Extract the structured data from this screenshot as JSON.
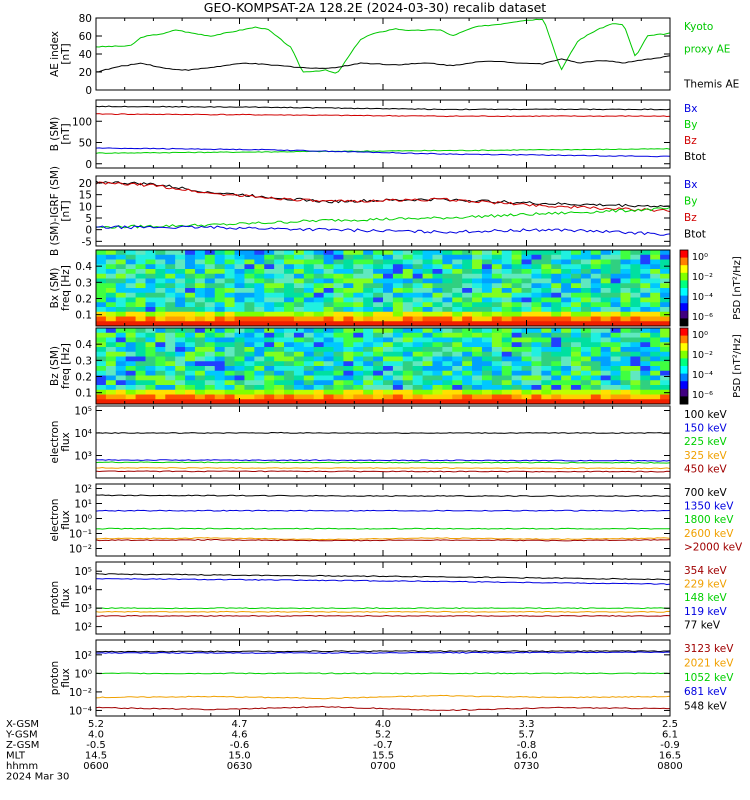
{
  "title": "GEO-KOMPSAT-2A 128.2E (2024-03-30) recalib dataset",
  "colors": {
    "black": "#000000",
    "blue": "#0000e0",
    "green": "#00d000",
    "red": "#d00000",
    "orange": "#f0a000",
    "darkred": "#a00000",
    "kyoto": "#00c800"
  },
  "chart_data": [
    {
      "id": "ae",
      "type": "line",
      "ylabel": [
        "AE index",
        "[nT]"
      ],
      "yticks": [
        "0",
        "20",
        "40",
        "60",
        "80"
      ],
      "ylim": [
        0,
        80
      ],
      "legend": [
        {
          "label": "Kyoto",
          "color": "#00c800"
        },
        {
          "label": "proxy AE",
          "color": "#00c800"
        },
        {
          "label": "Themis AE",
          "color": "#000000"
        }
      ],
      "series": [
        {
          "name": "Kyoto proxy AE",
          "color": "#00c800",
          "t": [
            0,
            6,
            8,
            12,
            14,
            16,
            20,
            28,
            30,
            34,
            36,
            40,
            42,
            46,
            48,
            52,
            55,
            60,
            62,
            64,
            66,
            70,
            74,
            78,
            81,
            84,
            87,
            90,
            92,
            94,
            96,
            100
          ],
          "values": [
            48,
            49,
            59,
            63,
            67,
            64,
            60,
            70,
            67,
            47,
            20,
            22,
            18,
            56,
            62,
            68,
            66,
            67,
            60,
            65,
            70,
            73,
            77,
            79,
            22,
            55,
            66,
            74,
            72,
            36,
            60,
            63
          ]
        },
        {
          "name": "Themis AE",
          "color": "#000000",
          "t": [
            0,
            4,
            8,
            12,
            16,
            20,
            26,
            30,
            34,
            38,
            42,
            46,
            52,
            58,
            62,
            66,
            70,
            74,
            78,
            81,
            84,
            88,
            92,
            96,
            100
          ],
          "values": [
            20,
            26,
            30,
            24,
            22,
            25,
            30,
            28,
            26,
            24,
            25,
            30,
            28,
            30,
            27,
            31,
            32,
            30,
            29,
            35,
            30,
            33,
            30,
            34,
            38
          ]
        }
      ]
    },
    {
      "id": "bsm",
      "type": "line",
      "ylabel": [
        "B (SM)",
        "[nT]"
      ],
      "yticks": [
        "0",
        "50",
        "100"
      ],
      "ylim": [
        -10,
        150
      ],
      "legend": [
        {
          "label": "Bx",
          "color": "#0000e0"
        },
        {
          "label": "By",
          "color": "#00d000"
        },
        {
          "label": "Bz",
          "color": "#d00000"
        },
        {
          "label": "Btot",
          "color": "#000000"
        }
      ],
      "series": [
        {
          "name": "Btot",
          "color": "#000000",
          "t": [
            0,
            30,
            60,
            100
          ],
          "values": [
            135,
            133,
            128,
            128
          ]
        },
        {
          "name": "Bz",
          "color": "#d00000",
          "t": [
            0,
            30,
            60,
            100
          ],
          "values": [
            117,
            115,
            112,
            112
          ]
        },
        {
          "name": "By",
          "color": "#00d000",
          "t": [
            0,
            50,
            100
          ],
          "values": [
            25,
            30,
            35
          ]
        },
        {
          "name": "Bx",
          "color": "#0000e0",
          "t": [
            0,
            30,
            60,
            100
          ],
          "values": [
            37,
            33,
            23,
            17
          ]
        }
      ]
    },
    {
      "id": "bdiff",
      "type": "line",
      "ylabel": [
        "B (SM)-IGRF (SM)",
        "[nT]"
      ],
      "yticks": [
        "-5",
        "0",
        "5",
        "10",
        "15",
        "20"
      ],
      "ylim": [
        -7,
        23
      ],
      "legend": [
        {
          "label": "Bx",
          "color": "#0000e0"
        },
        {
          "label": "By",
          "color": "#00d000"
        },
        {
          "label": "Bz",
          "color": "#d00000"
        },
        {
          "label": "Btot",
          "color": "#000000"
        }
      ],
      "series": [
        {
          "name": "Btot",
          "color": "#000000",
          "t": [
            0,
            10,
            20,
            40,
            60,
            80,
            100
          ],
          "values": [
            20.5,
            19.5,
            16,
            12,
            13,
            11,
            10
          ]
        },
        {
          "name": "Bz",
          "color": "#d00000",
          "t": [
            0,
            10,
            20,
            40,
            60,
            80,
            100
          ],
          "values": [
            20,
            19,
            15.5,
            12,
            13,
            10,
            8
          ]
        },
        {
          "name": "By",
          "color": "#00d000",
          "t": [
            0,
            20,
            40,
            60,
            80,
            100
          ],
          "values": [
            1,
            2,
            4,
            5,
            7,
            9
          ]
        },
        {
          "name": "Bx",
          "color": "#0000e0",
          "t": [
            0,
            20,
            40,
            60,
            80,
            100
          ],
          "values": [
            1,
            1,
            0,
            -1,
            0,
            -2
          ]
        }
      ]
    },
    {
      "id": "bxspec",
      "type": "heatmap",
      "ylabel": [
        "Bx (SM)",
        "freq [Hz]"
      ],
      "yticks": [
        "0.1",
        "0.2",
        "0.3",
        "0.4"
      ],
      "ylim": [
        0.03,
        0.5
      ],
      "colorbar": {
        "label": "PSD [nT²/Hz]",
        "ticks": [
          "10⁰",
          "10⁻²",
          "10⁻⁴",
          "10⁻⁶"
        ]
      }
    },
    {
      "id": "bzspec",
      "type": "heatmap",
      "ylabel": [
        "Bz (SM)",
        "freq [Hz]"
      ],
      "yticks": [
        "0.1",
        "0.2",
        "0.3",
        "0.4"
      ],
      "ylim": [
        0.03,
        0.5
      ],
      "colorbar": {
        "label": "PSD [nT²/Hz]",
        "ticks": [
          "10⁰",
          "10⁻²",
          "10⁻⁴",
          "10⁻⁶"
        ]
      }
    },
    {
      "id": "eflux1",
      "type": "line",
      "ylabel": [
        "electron",
        "flux"
      ],
      "yticks": [
        "10³",
        "10⁴",
        "10⁵"
      ],
      "ylim": [
        2,
        5.2
      ],
      "log": true,
      "legend": [
        {
          "label": "100 keV",
          "color": "#000000"
        },
        {
          "label": "150 keV",
          "color": "#0000e0"
        },
        {
          "label": "225 keV",
          "color": "#00d000"
        },
        {
          "label": "325 keV",
          "color": "#f0a000"
        },
        {
          "label": "450 keV",
          "color": "#a00000"
        }
      ],
      "series": [
        {
          "name": "100 keV",
          "color": "#000000",
          "t": [
            0,
            30,
            32,
            34,
            100
          ],
          "values": [
            4.0,
            4.0,
            4.02,
            4.0,
            4.0
          ]
        },
        {
          "name": "150 keV",
          "color": "#0000e0",
          "t": [
            0,
            100
          ],
          "values": [
            2.8,
            2.77
          ]
        },
        {
          "name": "225 keV",
          "color": "#00d000",
          "t": [
            0,
            100
          ],
          "values": [
            2.7,
            2.68
          ]
        },
        {
          "name": "325 keV",
          "color": "#f0a000",
          "t": [
            0,
            100
          ],
          "values": [
            2.45,
            2.43
          ]
        },
        {
          "name": "450 keV",
          "color": "#a00000",
          "t": [
            0,
            100
          ],
          "values": [
            2.3,
            2.28
          ]
        }
      ]
    },
    {
      "id": "eflux2",
      "type": "line",
      "ylabel": [
        "electron",
        "flux"
      ],
      "yticks": [
        "10⁻²",
        "10⁻¹",
        "10⁰",
        "10¹",
        "10²"
      ],
      "ylim": [
        -2.5,
        2.3
      ],
      "log": true,
      "legend": [
        {
          "label": "700 keV",
          "color": "#000000"
        },
        {
          "label": "1350 keV",
          "color": "#0000e0"
        },
        {
          "label": "1800 keV",
          "color": "#00d000"
        },
        {
          "label": "2600 keV",
          "color": "#f0a000"
        },
        {
          "label": ">2000 keV",
          "color": "#a00000"
        }
      ],
      "series": [
        {
          "name": "700 keV",
          "color": "#000000",
          "t": [
            0,
            50,
            100
          ],
          "values": [
            1.55,
            1.5,
            1.5
          ]
        },
        {
          "name": "1350 keV",
          "color": "#0000e0",
          "t": [
            0,
            100
          ],
          "values": [
            0.52,
            0.52
          ]
        },
        {
          "name": "1800 keV",
          "color": "#00d000",
          "t": [
            0,
            100
          ],
          "values": [
            -0.68,
            -0.68
          ]
        },
        {
          "name": "2600 keV",
          "color": "#f0a000",
          "t": [
            0,
            20,
            40,
            60,
            80,
            100
          ],
          "values": [
            -1.35,
            -1.3,
            -1.4,
            -1.3,
            -1.38,
            -1.3
          ]
        },
        {
          "name": ">2000 keV",
          "color": "#a00000",
          "t": [
            0,
            20,
            40,
            60,
            80,
            100
          ],
          "values": [
            -1.45,
            -1.42,
            -1.48,
            -1.43,
            -1.47,
            -1.42
          ]
        }
      ]
    },
    {
      "id": "pflux1",
      "type": "line",
      "ylabel": [
        "proton",
        "flux"
      ],
      "yticks": [
        "10²",
        "10³",
        "10⁴",
        "10⁵"
      ],
      "ylim": [
        1.6,
        5.5
      ],
      "log": true,
      "legend": [
        {
          "label": "354 keV",
          "color": "#a00000"
        },
        {
          "label": "229 keV",
          "color": "#f0a000"
        },
        {
          "label": "148 keV",
          "color": "#00d000"
        },
        {
          "label": "119 keV",
          "color": "#0000e0"
        },
        {
          "label": "77 keV",
          "color": "#000000"
        }
      ],
      "series": [
        {
          "name": "77 keV",
          "color": "#000000",
          "t": [
            0,
            60,
            100
          ],
          "values": [
            4.85,
            4.7,
            4.55
          ]
        },
        {
          "name": "119 keV",
          "color": "#0000e0",
          "t": [
            0,
            60,
            100
          ],
          "values": [
            4.6,
            4.45,
            4.3
          ]
        },
        {
          "name": "148 keV",
          "color": "#00d000",
          "t": [
            0,
            100
          ],
          "values": [
            3.0,
            3.0
          ]
        },
        {
          "name": "229 keV",
          "color": "#f0a000",
          "t": [
            0,
            100
          ],
          "values": [
            2.8,
            2.8
          ]
        },
        {
          "name": "354 keV",
          "color": "#a00000",
          "t": [
            0,
            100
          ],
          "values": [
            2.58,
            2.58
          ]
        }
      ]
    },
    {
      "id": "pflux2",
      "type": "line",
      "ylabel": [
        "proton",
        "flux"
      ],
      "yticks": [
        "10⁻⁴",
        "10⁻²",
        "10⁰",
        "10²"
      ],
      "ylim": [
        -4.6,
        3.6
      ],
      "log": true,
      "legend": [
        {
          "label": "3123 keV",
          "color": "#a00000"
        },
        {
          "label": "2021 keV",
          "color": "#f0a000"
        },
        {
          "label": "1052 keV",
          "color": "#00d000"
        },
        {
          "label": "681 keV",
          "color": "#0000e0"
        },
        {
          "label": "548 keV",
          "color": "#000000"
        }
      ],
      "series": [
        {
          "name": "548 keV",
          "color": "#000000",
          "t": [
            0,
            50,
            100
          ],
          "values": [
            2.35,
            2.4,
            2.4
          ]
        },
        {
          "name": "681 keV",
          "color": "#0000e0",
          "t": [
            0,
            50,
            100
          ],
          "values": [
            2.2,
            2.2,
            2.3
          ]
        },
        {
          "name": "1052 keV",
          "color": "#00d000",
          "t": [
            0,
            100
          ],
          "values": [
            0,
            0
          ]
        },
        {
          "name": "2021 keV",
          "color": "#f0a000",
          "t": [
            0,
            20,
            40,
            60,
            80,
            100
          ],
          "values": [
            -2.6,
            -2.5,
            -2.7,
            -2.4,
            -2.6,
            -2.5
          ]
        },
        {
          "name": "3123 keV",
          "color": "#a00000",
          "t": [
            0,
            20,
            40,
            60,
            80,
            100
          ],
          "values": [
            -3.7,
            -3.9,
            -3.6,
            -4.0,
            -3.7,
            -3.8
          ]
        }
      ]
    }
  ],
  "orbit_table": {
    "labels": [
      "X-GSM",
      "Y-GSM",
      "Z-GSM",
      "MLT",
      "hhmm",
      "2024 Mar 30"
    ],
    "columns": [
      {
        "t": 0,
        "values": [
          "5.2",
          "4.0",
          "-0.5",
          "14.5",
          "0600"
        ]
      },
      {
        "t": 25,
        "values": [
          "4.7",
          "4.6",
          "-0.6",
          "15.0",
          "0630"
        ]
      },
      {
        "t": 50,
        "values": [
          "4.0",
          "5.2",
          "-0.7",
          "15.5",
          "0700"
        ]
      },
      {
        "t": 75,
        "values": [
          "3.3",
          "5.7",
          "-0.8",
          "16.0",
          "0730"
        ]
      },
      {
        "t": 100,
        "values": [
          "2.5",
          "6.1",
          "-0.9",
          "16.5",
          "0800"
        ]
      }
    ]
  }
}
